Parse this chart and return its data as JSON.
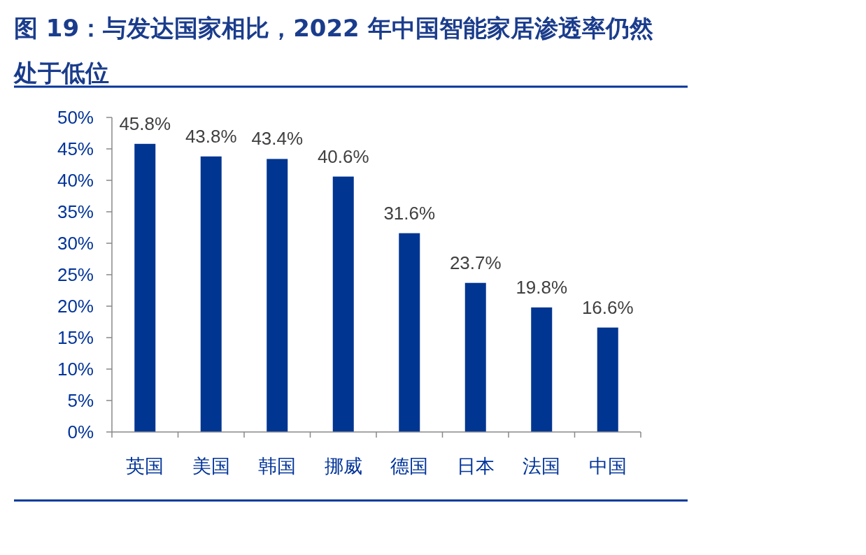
{
  "chart_data": {
    "type": "bar",
    "title": "图 19：与发达国家相比，2022 年中国智能家居渗透率仍然处于低位",
    "categories": [
      "英国",
      "美国",
      "韩国",
      "挪威",
      "德国",
      "日本",
      "法国",
      "中国"
    ],
    "values": [
      45.8,
      43.8,
      43.4,
      40.6,
      31.6,
      23.7,
      19.8,
      16.6
    ],
    "value_labels": [
      "45.8%",
      "43.8%",
      "43.4%",
      "40.6%",
      "31.6%",
      "23.7%",
      "19.8%",
      "16.6%"
    ],
    "color": "#003591",
    "ylim": [
      0,
      50
    ],
    "yticks": [
      {
        "value": 0,
        "label": "0%"
      },
      {
        "value": 5,
        "label": "5%"
      },
      {
        "value": 10,
        "label": "10%"
      },
      {
        "value": 15,
        "label": "15%"
      },
      {
        "value": 20,
        "label": "20%"
      },
      {
        "value": 25,
        "label": "25%"
      },
      {
        "value": 30,
        "label": "30%"
      },
      {
        "value": 35,
        "label": "35%"
      },
      {
        "value": 40,
        "label": "40%"
      },
      {
        "value": 45,
        "label": "45%"
      },
      {
        "value": 50,
        "label": "50%"
      }
    ]
  }
}
